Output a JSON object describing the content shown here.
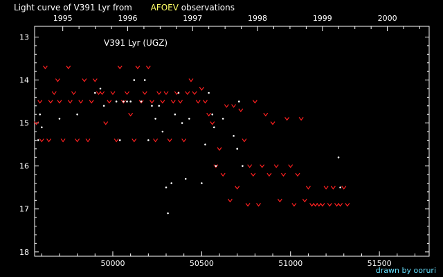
{
  "title_left": "Light curve of V391 Lyr from",
  "title_source": "AFOEV",
  "title_right": "observations",
  "credit": "drawn by ooruri",
  "colors": {
    "background": "#000000",
    "axes": "#ffffff",
    "visual": "#ff2020",
    "positive": "#ffffff",
    "source": "#ffff66",
    "credit": "#66e0ff"
  },
  "chart_data": {
    "type": "scatter",
    "annotation": "V391 Lyr (UGZ)",
    "x_axis": {
      "ticks": [
        50000,
        50500,
        51000,
        51500
      ],
      "labels": [
        "50000",
        "50500",
        "51000",
        "51500"
      ],
      "range": [
        49560,
        51780
      ]
    },
    "x_axis_top": {
      "ticks": [
        1995,
        1996,
        1997,
        1998,
        1999,
        2000
      ],
      "labels": [
        "1995",
        "1996",
        "1997",
        "1998",
        "1999",
        "2000"
      ]
    },
    "y_axis": {
      "ticks": [
        13,
        14,
        15,
        16,
        17,
        18
      ],
      "labels": [
        "13",
        "14",
        "15",
        "16",
        "17",
        "18"
      ],
      "range": [
        12.75,
        18.1
      ],
      "reversed": true
    },
    "series": [
      {
        "marker": "v",
        "color": "#ff2020",
        "points": [
          [
            49570,
            15.0
          ],
          [
            49590,
            14.5
          ],
          [
            49600,
            15.4
          ],
          [
            49620,
            13.7
          ],
          [
            49640,
            15.4
          ],
          [
            49650,
            14.5
          ],
          [
            49670,
            14.3
          ],
          [
            49690,
            14.0
          ],
          [
            49700,
            14.5
          ],
          [
            49720,
            15.4
          ],
          [
            49750,
            13.7
          ],
          [
            49760,
            14.5
          ],
          [
            49780,
            14.3
          ],
          [
            49800,
            15.4
          ],
          [
            49820,
            14.5
          ],
          [
            49840,
            14.0
          ],
          [
            49860,
            15.4
          ],
          [
            49880,
            14.5
          ],
          [
            49900,
            14.0
          ],
          [
            49920,
            14.3
          ],
          [
            49940,
            14.3
          ],
          [
            49960,
            15.0
          ],
          [
            49980,
            14.5
          ],
          [
            50000,
            14.3
          ],
          [
            50020,
            15.4
          ],
          [
            50040,
            13.7
          ],
          [
            50060,
            14.5
          ],
          [
            50080,
            14.3
          ],
          [
            50100,
            14.8
          ],
          [
            50120,
            15.4
          ],
          [
            50140,
            13.7
          ],
          [
            50160,
            14.5
          ],
          [
            50180,
            14.3
          ],
          [
            50200,
            13.7
          ],
          [
            50220,
            14.5
          ],
          [
            50240,
            15.4
          ],
          [
            50260,
            14.3
          ],
          [
            50280,
            14.5
          ],
          [
            50300,
            14.3
          ],
          [
            50320,
            15.4
          ],
          [
            50340,
            14.5
          ],
          [
            50360,
            14.3
          ],
          [
            50380,
            14.5
          ],
          [
            50400,
            15.4
          ],
          [
            50420,
            14.3
          ],
          [
            50440,
            14.0
          ],
          [
            50460,
            14.3
          ],
          [
            50480,
            14.5
          ],
          [
            50500,
            14.2
          ],
          [
            50520,
            14.5
          ],
          [
            50540,
            14.8
          ],
          [
            50560,
            15.0
          ],
          [
            50580,
            16.0
          ],
          [
            50600,
            15.6
          ],
          [
            50620,
            16.2
          ],
          [
            50640,
            14.6
          ],
          [
            50660,
            16.8
          ],
          [
            50680,
            14.6
          ],
          [
            50700,
            16.5
          ],
          [
            50720,
            14.7
          ],
          [
            50740,
            15.4
          ],
          [
            50760,
            16.9
          ],
          [
            50770,
            16.0
          ],
          [
            50790,
            16.2
          ],
          [
            50800,
            14.5
          ],
          [
            50820,
            16.9
          ],
          [
            50840,
            16.0
          ],
          [
            50860,
            14.8
          ],
          [
            50880,
            16.2
          ],
          [
            50900,
            15.0
          ],
          [
            50920,
            16.0
          ],
          [
            50940,
            16.8
          ],
          [
            50960,
            16.2
          ],
          [
            50980,
            14.9
          ],
          [
            51000,
            16.0
          ],
          [
            51020,
            16.9
          ],
          [
            51040,
            16.2
          ],
          [
            51060,
            14.9
          ],
          [
            51080,
            16.8
          ],
          [
            51100,
            16.5
          ],
          [
            51120,
            16.9
          ],
          [
            51140,
            16.9
          ],
          [
            51160,
            16.9
          ],
          [
            51180,
            16.9
          ],
          [
            51200,
            16.5
          ],
          [
            51220,
            16.9
          ],
          [
            51240,
            16.5
          ],
          [
            51260,
            16.9
          ],
          [
            51280,
            16.9
          ],
          [
            51300,
            16.5
          ],
          [
            51320,
            16.9
          ]
        ]
      },
      {
        "marker": "dot",
        "color": "#ffffff",
        "points": [
          [
            49580,
            15.4
          ],
          [
            49590,
            14.8
          ],
          [
            49600,
            15.1
          ],
          [
            49700,
            14.9
          ],
          [
            49800,
            14.8
          ],
          [
            49900,
            14.3
          ],
          [
            49930,
            14.2
          ],
          [
            49950,
            14.6
          ],
          [
            50020,
            14.5
          ],
          [
            50040,
            15.4
          ],
          [
            50060,
            14.5
          ],
          [
            50080,
            14.5
          ],
          [
            50100,
            14.5
          ],
          [
            50120,
            14.0
          ],
          [
            50160,
            14.5
          ],
          [
            50180,
            14.0
          ],
          [
            50200,
            15.4
          ],
          [
            50220,
            14.6
          ],
          [
            50240,
            14.9
          ],
          [
            50260,
            14.6
          ],
          [
            50280,
            15.2
          ],
          [
            50300,
            16.5
          ],
          [
            50310,
            17.1
          ],
          [
            50330,
            16.4
          ],
          [
            50350,
            14.8
          ],
          [
            50370,
            14.3
          ],
          [
            50390,
            15.0
          ],
          [
            50410,
            16.3
          ],
          [
            50430,
            14.9
          ],
          [
            50500,
            16.4
          ],
          [
            50520,
            15.5
          ],
          [
            50540,
            14.3
          ],
          [
            50560,
            14.8
          ],
          [
            50570,
            15.1
          ],
          [
            50580,
            16.0
          ],
          [
            50620,
            14.9
          ],
          [
            50680,
            15.3
          ],
          [
            50700,
            15.6
          ],
          [
            50710,
            14.5
          ],
          [
            50730,
            16.0
          ],
          [
            51270,
            15.8
          ],
          [
            51280,
            16.5
          ]
        ]
      }
    ]
  }
}
